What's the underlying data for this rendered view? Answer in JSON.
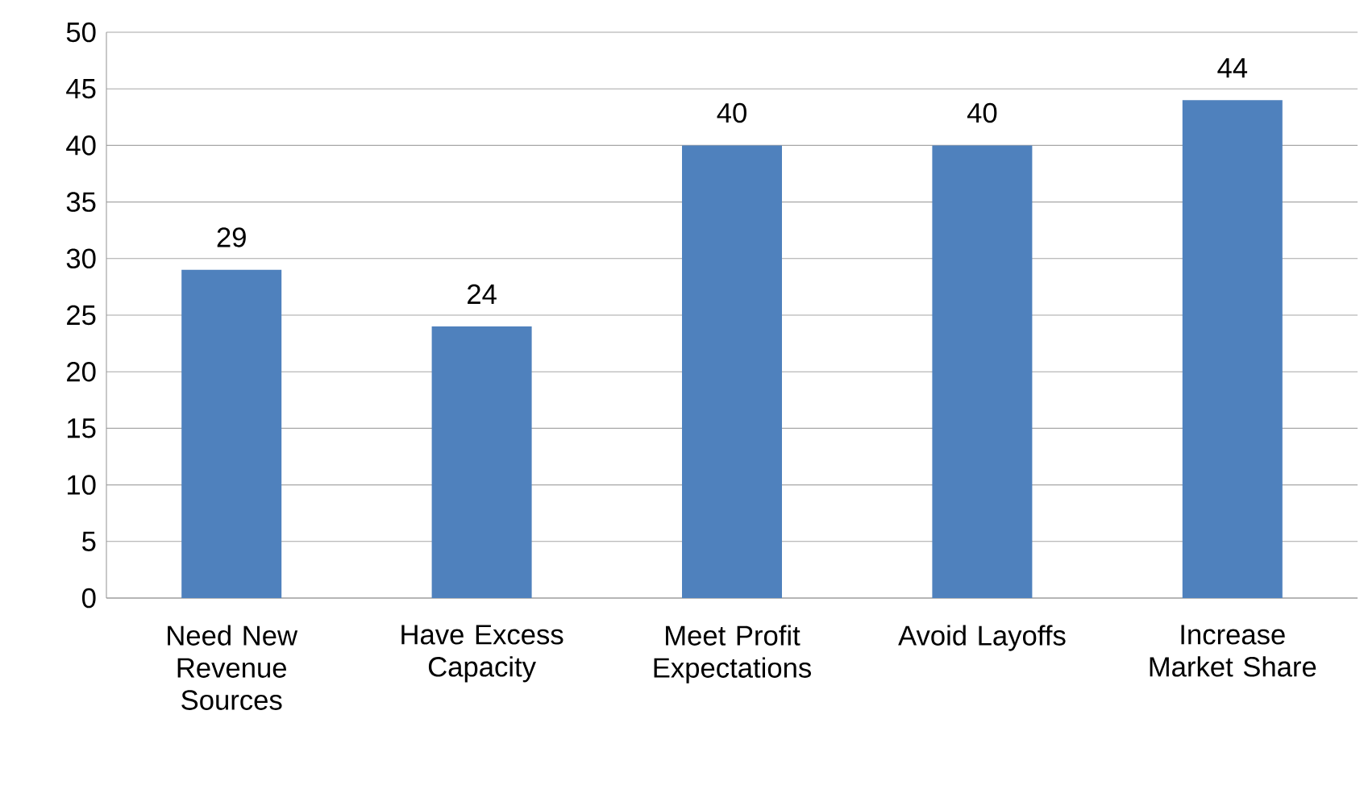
{
  "chart_data": {
    "type": "bar",
    "categories": [
      "Need New Revenue Sources",
      "Have Excess Capacity",
      "Meet Profit Expectations",
      "Avoid Layoffs",
      "Increase Market Share"
    ],
    "values": [
      29,
      24,
      40,
      40,
      44
    ],
    "color": "#4f81bd",
    "ylim": [
      0,
      50
    ],
    "yticks": [
      0,
      5,
      10,
      15,
      20,
      25,
      30,
      35,
      40,
      45,
      50
    ],
    "grid": "y",
    "data_labels": true
  }
}
